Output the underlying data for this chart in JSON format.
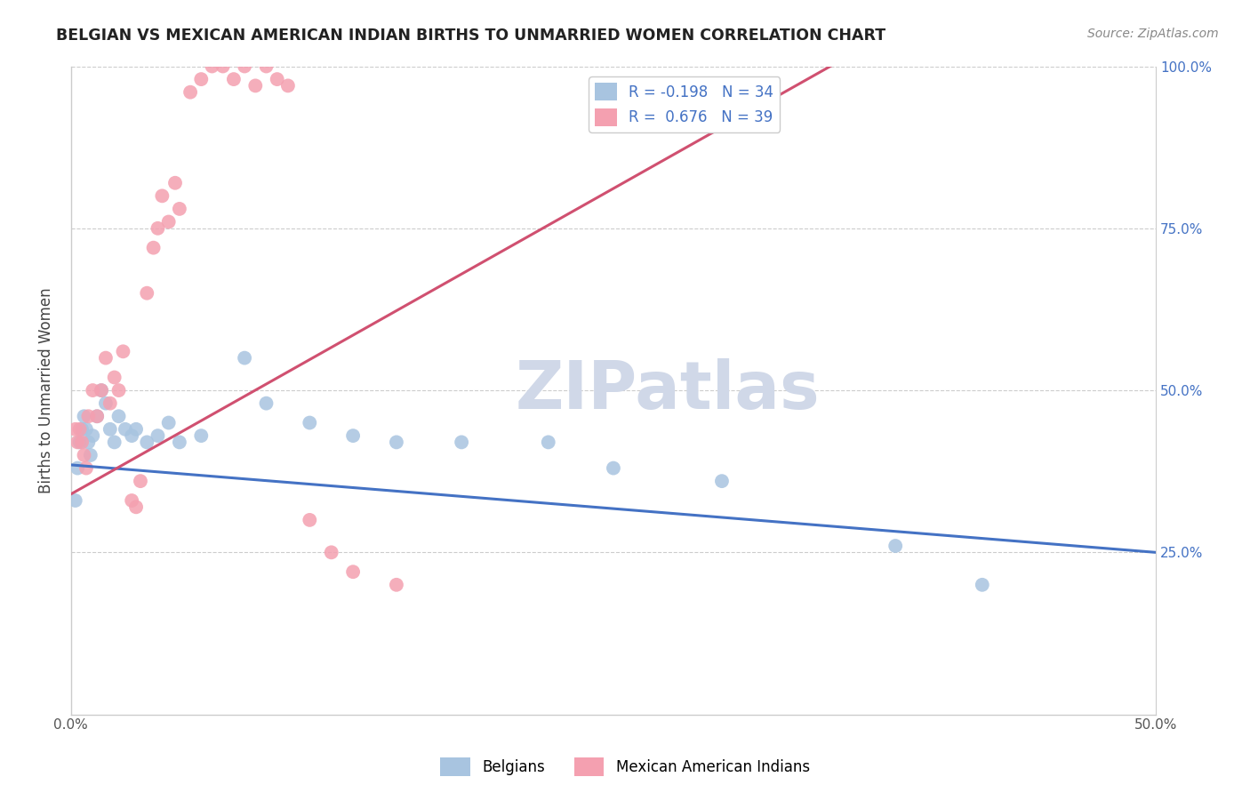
{
  "title": "BELGIAN VS MEXICAN AMERICAN INDIAN BIRTHS TO UNMARRIED WOMEN CORRELATION CHART",
  "source": "Source: ZipAtlas.com",
  "ylabel": "Births to Unmarried Women",
  "xlim": [
    0.0,
    0.5
  ],
  "ylim": [
    0.0,
    1.0
  ],
  "yticks": [
    0.0,
    0.25,
    0.5,
    0.75,
    1.0
  ],
  "ytick_labels": [
    "",
    "25.0%",
    "50.0%",
    "75.0%",
    "100.0%"
  ],
  "xticks": [
    0.0,
    0.05,
    0.1,
    0.15,
    0.2,
    0.25,
    0.3,
    0.35,
    0.4,
    0.45,
    0.5
  ],
  "xtick_labels": [
    "0.0%",
    "",
    "",
    "",
    "",
    "",
    "",
    "",
    "",
    "",
    "50.0%"
  ],
  "legend_r_blue": "-0.198",
  "legend_n_blue": "34",
  "legend_r_pink": "0.676",
  "legend_n_pink": "39",
  "blue_color": "#a8c4e0",
  "pink_color": "#f4a0b0",
  "blue_line_color": "#4472c4",
  "pink_line_color": "#d05070",
  "watermark": "ZIPatlas",
  "watermark_color": "#d0d8e8",
  "blue_scatter_x": [
    0.002,
    0.003,
    0.004,
    0.005,
    0.006,
    0.007,
    0.008,
    0.009,
    0.01,
    0.012,
    0.014,
    0.016,
    0.018,
    0.02,
    0.022,
    0.025,
    0.028,
    0.03,
    0.035,
    0.04,
    0.045,
    0.05,
    0.06,
    0.08,
    0.09,
    0.11,
    0.13,
    0.15,
    0.18,
    0.22,
    0.25,
    0.3,
    0.38,
    0.42
  ],
  "blue_scatter_y": [
    0.33,
    0.38,
    0.42,
    0.44,
    0.46,
    0.44,
    0.42,
    0.4,
    0.43,
    0.46,
    0.5,
    0.48,
    0.44,
    0.42,
    0.46,
    0.44,
    0.43,
    0.44,
    0.42,
    0.43,
    0.45,
    0.42,
    0.43,
    0.55,
    0.48,
    0.45,
    0.43,
    0.42,
    0.42,
    0.42,
    0.38,
    0.36,
    0.26,
    0.2
  ],
  "pink_scatter_x": [
    0.002,
    0.003,
    0.004,
    0.005,
    0.006,
    0.007,
    0.008,
    0.01,
    0.012,
    0.014,
    0.016,
    0.018,
    0.02,
    0.022,
    0.024,
    0.028,
    0.03,
    0.032,
    0.035,
    0.038,
    0.04,
    0.042,
    0.045,
    0.048,
    0.05,
    0.055,
    0.06,
    0.065,
    0.07,
    0.075,
    0.08,
    0.085,
    0.09,
    0.095,
    0.1,
    0.11,
    0.12,
    0.13,
    0.15
  ],
  "pink_scatter_y": [
    0.44,
    0.42,
    0.44,
    0.42,
    0.4,
    0.38,
    0.46,
    0.5,
    0.46,
    0.5,
    0.55,
    0.48,
    0.52,
    0.5,
    0.56,
    0.33,
    0.32,
    0.36,
    0.65,
    0.72,
    0.75,
    0.8,
    0.76,
    0.82,
    0.78,
    0.96,
    0.98,
    1.0,
    1.0,
    0.98,
    1.0,
    0.97,
    1.0,
    0.98,
    0.97,
    0.3,
    0.25,
    0.22,
    0.2
  ],
  "blue_line_x": [
    0.0,
    0.5
  ],
  "blue_line_y": [
    0.385,
    0.25
  ],
  "pink_line_x": [
    0.0,
    0.35
  ],
  "pink_line_y": [
    0.34,
    1.0
  ]
}
